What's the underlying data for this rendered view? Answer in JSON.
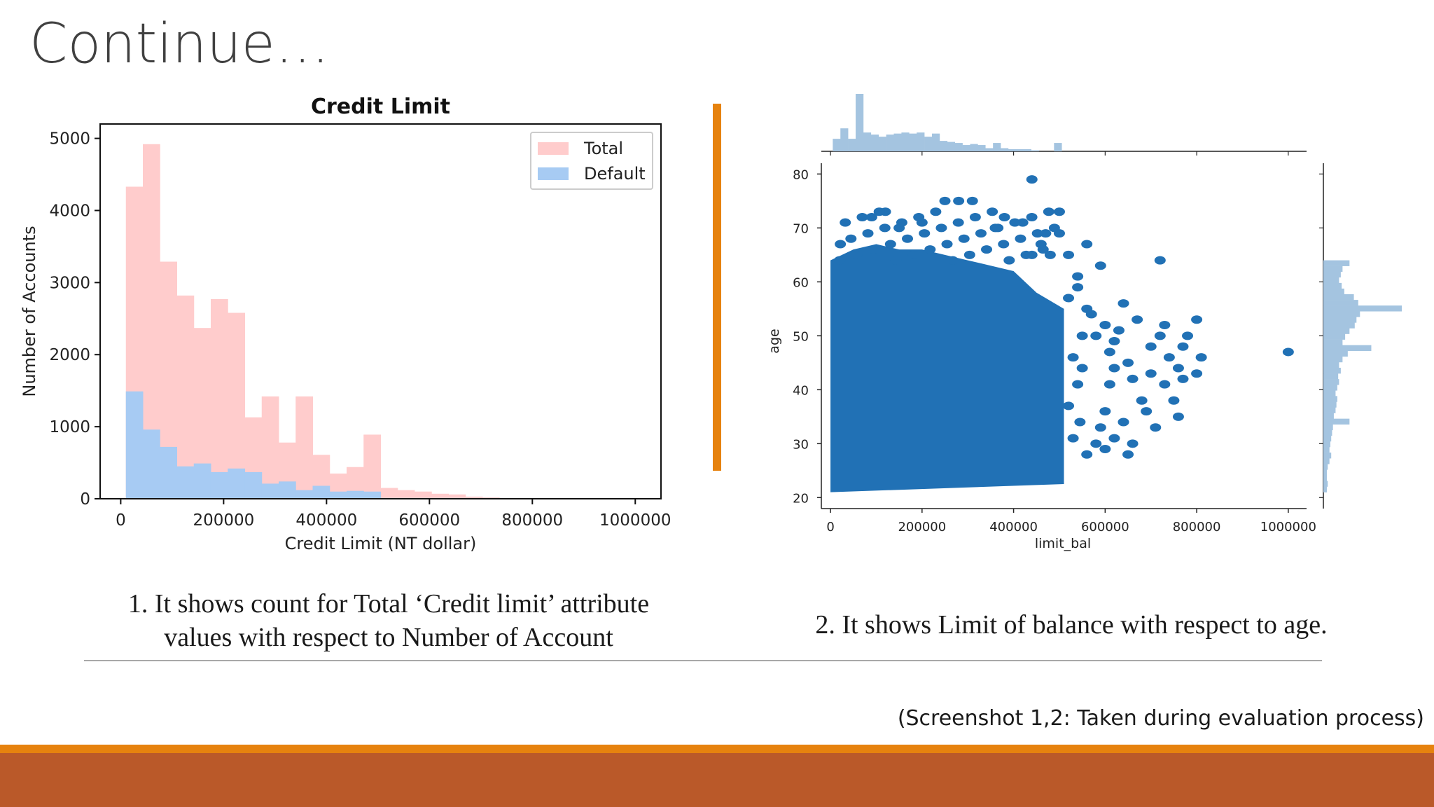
{
  "slide": {
    "title": "Continue…",
    "caption_left_line1": "1. It shows count for Total ‘Credit limit’ attribute",
    "caption_left_line2": "values with respect to Number of Account",
    "caption_right": "2. It shows Limit of balance with respect to age.",
    "source_note": "(Screenshot 1,2: Taken during evaluation process)",
    "colors": {
      "accent_orange": "#e6820e",
      "footer_rust": "#ba5929"
    }
  },
  "chart_data": [
    {
      "type": "bar",
      "title": "Credit Limit",
      "xlabel": "Credit Limit (NT dollar)",
      "ylabel": "Number of Accounts",
      "xlim": [
        -40000,
        1050000
      ],
      "ylim": [
        0,
        5200
      ],
      "xticks": [
        "0",
        "200000",
        "400000",
        "600000",
        "800000",
        "1000000"
      ],
      "yticks": [
        "0",
        "1000",
        "2000",
        "3000",
        "4000",
        "5000"
      ],
      "bin_edges": [
        10000,
        43000,
        76000,
        109000,
        142000,
        175000,
        208000,
        241000,
        274000,
        307000,
        340000,
        373000,
        406000,
        439000,
        472000,
        505000,
        538000,
        571000,
        604000,
        637000,
        670000,
        703000,
        736000,
        769000,
        802000,
        835000,
        868000,
        901000,
        934000,
        967000,
        1000000
      ],
      "legend": "top-right",
      "grid": false,
      "series": [
        {
          "name": "Total",
          "color": "#ffcccc",
          "values": [
            4330,
            4920,
            3290,
            2820,
            2370,
            2770,
            2580,
            1130,
            1420,
            780,
            1420,
            610,
            350,
            440,
            890,
            150,
            120,
            100,
            70,
            60,
            30,
            20,
            10,
            5,
            5,
            0,
            0,
            0,
            0,
            5
          ]
        },
        {
          "name": "Default",
          "color": "#a7cbf3",
          "values": [
            1490,
            960,
            720,
            450,
            490,
            370,
            420,
            370,
            210,
            240,
            120,
            180,
            100,
            110,
            100,
            10,
            5,
            5,
            0,
            0,
            0,
            0,
            0,
            0,
            0,
            0,
            0,
            0,
            0,
            0
          ]
        }
      ]
    },
    {
      "type": "scatter",
      "title": "",
      "xlabel": "limit_bal",
      "ylabel": "age",
      "xlim": [
        -20000,
        1040000
      ],
      "ylim": [
        19,
        82
      ],
      "xticks": [
        "0",
        "200000",
        "400000",
        "600000",
        "800000",
        "1000000"
      ],
      "yticks": [
        "20",
        "30",
        "40",
        "50",
        "60",
        "70",
        "80"
      ],
      "point_color": "#2171b5",
      "dense_region": {
        "x": [
          0,
          510000
        ],
        "y": [
          21,
          64
        ]
      },
      "sample_points": [
        [
          1000000,
          47
        ],
        [
          440000,
          79
        ],
        [
          500000,
          73
        ],
        [
          310000,
          75
        ],
        [
          280000,
          75
        ],
        [
          250000,
          75
        ],
        [
          720000,
          64
        ],
        [
          670000,
          53
        ],
        [
          630000,
          51
        ],
        [
          610000,
          47
        ],
        [
          560000,
          55
        ],
        [
          520000,
          65
        ],
        [
          590000,
          63
        ],
        [
          560000,
          67
        ],
        [
          540000,
          59
        ],
        [
          640000,
          56
        ],
        [
          650000,
          45
        ],
        [
          660000,
          42
        ],
        [
          610000,
          41
        ],
        [
          600000,
          36
        ],
        [
          580000,
          30
        ],
        [
          560000,
          28
        ],
        [
          650000,
          28
        ],
        [
          590000,
          33
        ],
        [
          540000,
          41
        ],
        [
          530000,
          46
        ],
        [
          520000,
          37
        ],
        [
          620000,
          44
        ],
        [
          700000,
          43
        ],
        [
          730000,
          41
        ],
        [
          750000,
          38
        ],
        [
          760000,
          35
        ],
        [
          710000,
          33
        ],
        [
          690000,
          36
        ],
        [
          640000,
          34
        ],
        [
          730000,
          52
        ],
        [
          770000,
          48
        ],
        [
          780000,
          50
        ],
        [
          800000,
          53
        ],
        [
          810000,
          46
        ],
        [
          800000,
          43
        ],
        [
          770000,
          42
        ],
        [
          580000,
          50
        ],
        [
          600000,
          52
        ],
        [
          620000,
          49
        ],
        [
          550000,
          50
        ],
        [
          570000,
          54
        ],
        [
          550000,
          44
        ],
        [
          530000,
          31
        ],
        [
          545000,
          34
        ],
        [
          600000,
          29
        ],
        [
          620000,
          31
        ],
        [
          660000,
          30
        ],
        [
          680000,
          38
        ],
        [
          700000,
          48
        ],
        [
          720000,
          50
        ],
        [
          740000,
          46
        ],
        [
          760000,
          44
        ],
        [
          540000,
          61
        ],
        [
          470000,
          69
        ],
        [
          420000,
          71
        ],
        [
          380000,
          72
        ],
        [
          460000,
          67
        ],
        [
          480000,
          65
        ],
        [
          360000,
          70
        ],
        [
          120000,
          73
        ],
        [
          90000,
          72
        ],
        [
          150000,
          70
        ],
        [
          200000,
          71
        ],
        [
          440000,
          65
        ],
        [
          500000,
          69
        ],
        [
          520000,
          57
        ]
      ],
      "marginal_top_values": [
        12,
        22,
        12,
        55,
        18,
        16,
        14,
        16,
        17,
        18,
        17,
        18,
        14,
        17,
        10,
        9,
        8,
        6,
        7,
        6,
        3,
        8,
        3,
        2,
        2,
        2,
        1,
        0,
        0,
        8
      ],
      "marginal_right_values": [
        30,
        22,
        20,
        18,
        21,
        24,
        35,
        40,
        90,
        42,
        38,
        36,
        30,
        25,
        22,
        55,
        28,
        22,
        18,
        20,
        17,
        18,
        16,
        14,
        16,
        15,
        14,
        12,
        30,
        11,
        10,
        9,
        8,
        7,
        9,
        7,
        5,
        4,
        4,
        5,
        4
      ]
    }
  ]
}
